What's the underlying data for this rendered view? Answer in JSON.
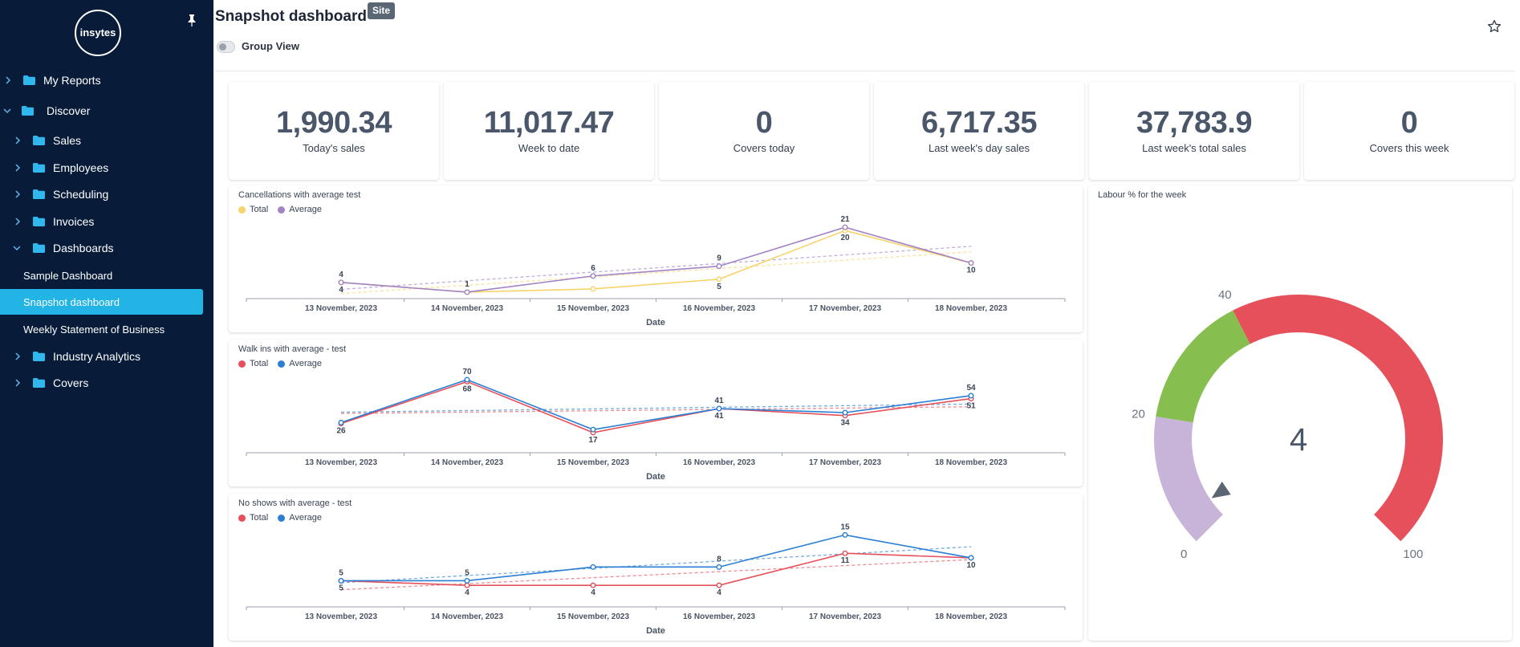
{
  "sidebar": {
    "logo_text": "insytes",
    "items": [
      {
        "label": "My Reports"
      },
      {
        "label": "Discover"
      },
      {
        "label": "Sales"
      },
      {
        "label": "Employees"
      },
      {
        "label": "Scheduling"
      },
      {
        "label": "Invoices"
      },
      {
        "label": "Dashboards"
      },
      {
        "label": "Sample Dashboard"
      },
      {
        "label": "Snapshot dashboard"
      },
      {
        "label": "Weekly Statement of Business"
      },
      {
        "label": "Industry Analytics"
      },
      {
        "label": "Covers"
      }
    ],
    "colors": {
      "background": "#081c3a",
      "active": "#23b4e6",
      "folder": "#2fb7ee"
    }
  },
  "header": {
    "title": "Snapshot dashboard",
    "badge": "Site",
    "group_view_label": "Group View",
    "group_view_on": false,
    "star_icon": "star-outline-icon"
  },
  "kpis": [
    {
      "value": "1,990.34",
      "label": "Today's sales"
    },
    {
      "value": "11,017.47",
      "label": "Week to date"
    },
    {
      "value": "0",
      "label": "Covers today"
    },
    {
      "value": "6,717.35",
      "label": "Last week's day sales"
    },
    {
      "value": "37,783.9",
      "label": "Last week's total sales"
    },
    {
      "value": "0",
      "label": "Covers this week"
    }
  ],
  "chart_data": [
    {
      "type": "line",
      "title": "Cancellations with average test",
      "xlabel": "Date",
      "categories": [
        "13 November, 2023",
        "14 November, 2023",
        "15 November, 2023",
        "16 November, 2023",
        "17 November, 2023",
        "18 November, 2023"
      ],
      "ylim": [
        0,
        24
      ],
      "series": [
        {
          "name": "Total",
          "color": "#f7d36a",
          "values": [
            4,
            1,
            2,
            5,
            20,
            10
          ],
          "labels": [
            "4",
            "",
            "",
            "5",
            "20",
            "10"
          ]
        },
        {
          "name": "Average",
          "color": "#a383c6",
          "values": [
            4,
            1,
            6,
            9,
            21,
            10
          ],
          "labels": [
            "4",
            "1",
            "6",
            "9",
            "21",
            ""
          ]
        }
      ],
      "trendlines": true
    },
    {
      "type": "line",
      "title": "Walk ins with average - test",
      "xlabel": "Date",
      "categories": [
        "13 November, 2023",
        "14 November, 2023",
        "15 November, 2023",
        "16 November, 2023",
        "17 November, 2023",
        "18 November, 2023"
      ],
      "ylim": [
        0,
        78
      ],
      "series": [
        {
          "name": "Total",
          "color": "#e5505a",
          "values": [
            26,
            68,
            17,
            41,
            34,
            51
          ],
          "labels": [
            "26",
            "68",
            "17",
            "41",
            "34",
            "51"
          ]
        },
        {
          "name": "Average",
          "color": "#2a7fd4",
          "values": [
            27,
            70,
            20,
            41,
            37,
            54
          ],
          "labels": [
            "",
            "70",
            "",
            "41",
            "",
            "54"
          ]
        }
      ],
      "trendlines": true
    },
    {
      "type": "line",
      "title": "No shows with average - test",
      "xlabel": "Date",
      "categories": [
        "13 November, 2023",
        "14 November, 2023",
        "15 November, 2023",
        "16 November, 2023",
        "17 November, 2023",
        "18 November, 2023"
      ],
      "ylim": [
        0,
        17
      ],
      "series": [
        {
          "name": "Total",
          "color": "#e5505a",
          "values": [
            5,
            4,
            4,
            4,
            11,
            10
          ],
          "labels": [
            "5",
            "4",
            "4",
            "4",
            "11",
            "10"
          ]
        },
        {
          "name": "Average",
          "color": "#2a7fd4",
          "values": [
            5,
            5,
            8,
            8,
            15,
            10
          ],
          "labels": [
            "5",
            "5",
            "",
            "8",
            "15",
            ""
          ]
        }
      ],
      "trendlines": true
    }
  ],
  "gauge": {
    "title": "Labour % for the week",
    "value": "4",
    "value_num": 4,
    "min": 0,
    "max": 100,
    "ticks": [
      "0",
      "20",
      "40",
      "100"
    ],
    "bands": [
      {
        "from": 0,
        "to": 20,
        "color": "#c8b4d9"
      },
      {
        "from": 20,
        "to": 40,
        "color": "#86bf4f"
      },
      {
        "from": 40,
        "to": 100,
        "color": "#e5505a"
      }
    ]
  }
}
